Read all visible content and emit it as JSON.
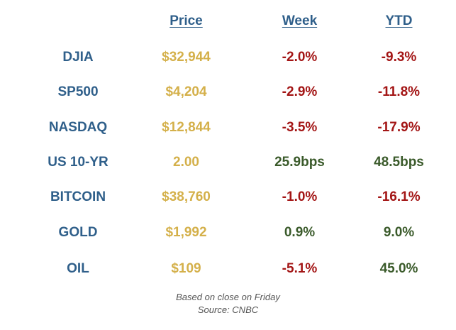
{
  "headers": [
    "Price",
    "Week",
    "YTD"
  ],
  "rows": [
    {
      "ticker": "DJIA",
      "price": "$32,944",
      "week": "-2.0%",
      "ytd": "-9.3%",
      "week_dir": "neg",
      "ytd_dir": "neg"
    },
    {
      "ticker": "SP500",
      "price": "$4,204",
      "week": "-2.9%",
      "ytd": "-11.8%",
      "week_dir": "neg",
      "ytd_dir": "neg"
    },
    {
      "ticker": "NASDAQ",
      "price": "$12,844",
      "week": "-3.5%",
      "ytd": "-17.9%",
      "week_dir": "neg",
      "ytd_dir": "neg"
    },
    {
      "ticker": "US 10-YR",
      "price": "2.00",
      "week": "25.9bps",
      "ytd": "48.5bps",
      "week_dir": "pos",
      "ytd_dir": "pos"
    },
    {
      "ticker": "BITCOIN",
      "price": "$38,760",
      "week": "-1.0%",
      "ytd": "-16.1%",
      "week_dir": "neg",
      "ytd_dir": "neg"
    },
    {
      "ticker": "GOLD",
      "price": "$1,992",
      "week": "0.9%",
      "ytd": "9.0%",
      "week_dir": "pos",
      "ytd_dir": "pos"
    },
    {
      "ticker": "OIL",
      "price": "$109",
      "week": "-5.1%",
      "ytd": "45.0%",
      "week_dir": "neg",
      "ytd_dir": "pos"
    }
  ],
  "footer": {
    "line1": "Based on close on Friday",
    "line2": "Source: CNBC"
  },
  "colors": {
    "ticker": "#2f5f8a",
    "price": "#d4b04a",
    "negative": "#a31515",
    "positive": "#3a5a2a"
  }
}
